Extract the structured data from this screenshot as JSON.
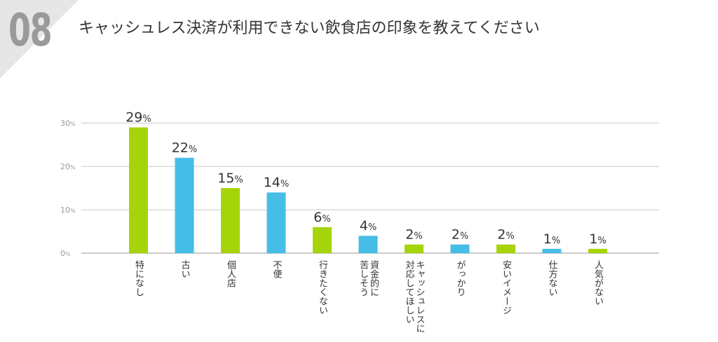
{
  "header": {
    "number": "08",
    "title": "キャッシュレス決済が利用できない飲食店の印象を教えてください"
  },
  "colors": {
    "green": "#a6d40a",
    "blue": "#45bde6",
    "grid": "#c8c8c8"
  },
  "chart_data": {
    "type": "bar",
    "title": "キャッシュレス決済が利用できない飲食店の印象を教えてください",
    "unit": "%",
    "categories": [
      "特になし",
      "古い",
      "個人店",
      "不便",
      "行きたくない",
      "資金的に苦しそう",
      "キャッシュレスに対応してほしい",
      "がっかり",
      "安いイメージ",
      "仕方ない",
      "人気がない"
    ],
    "values": [
      29,
      22,
      15,
      14,
      6,
      4,
      2,
      2,
      2,
      1,
      1
    ],
    "bar_colors": [
      "green",
      "blue",
      "green",
      "blue",
      "green",
      "blue",
      "green",
      "blue",
      "green",
      "blue",
      "green"
    ],
    "ylim": [
      0,
      30
    ],
    "yticks": [
      0,
      10,
      20,
      30
    ],
    "grid": true,
    "xlabel": "",
    "ylabel": ""
  }
}
